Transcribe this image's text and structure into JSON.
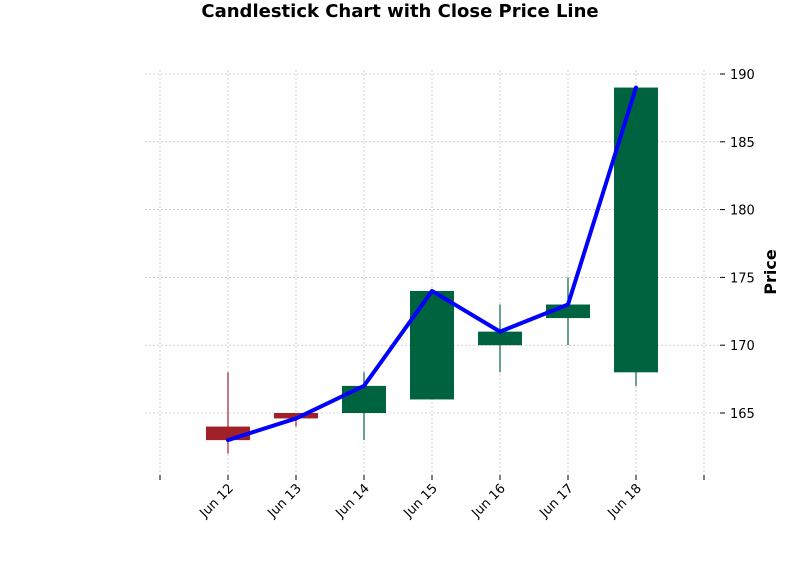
{
  "chart_data": {
    "type": "candlestick",
    "title": "Candlestick Chart with Close Price Line",
    "xlabel": "",
    "ylabel": "Price",
    "ylim": [
      160.5,
      191
    ],
    "yticks": [
      165,
      170,
      175,
      180,
      185,
      190
    ],
    "grid": true,
    "legend": "none",
    "categories": [
      "Jun 12",
      "Jun 13",
      "Jun 14",
      "Jun 15",
      "Jun 16",
      "Jun 17",
      "Jun 18"
    ],
    "ohlc": [
      {
        "date": "Jun 12",
        "open": 164.0,
        "high": 168.0,
        "low": 162.0,
        "close": 163.0
      },
      {
        "date": "Jun 13",
        "open": 165.0,
        "high": 165.0,
        "low": 164.0,
        "close": 164.6
      },
      {
        "date": "Jun 14",
        "open": 165.0,
        "high": 168.0,
        "low": 163.0,
        "close": 167.0
      },
      {
        "date": "Jun 15",
        "open": 166.0,
        "high": 174.0,
        "low": 166.0,
        "close": 174.0
      },
      {
        "date": "Jun 16",
        "open": 170.0,
        "high": 173.0,
        "low": 168.0,
        "close": 171.0
      },
      {
        "date": "Jun 17",
        "open": 172.0,
        "high": 175.0,
        "low": 170.0,
        "close": 173.0
      },
      {
        "date": "Jun 18",
        "open": 168.0,
        "high": 189.0,
        "low": 167.0,
        "close": 189.0
      }
    ],
    "close_line": [
      163.0,
      164.6,
      167.0,
      174.0,
      171.0,
      173.0,
      189.0
    ],
    "colors": {
      "up": "#006340",
      "down": "#a02128",
      "close_line": "#0000ff",
      "grid": "#b0b0b0"
    }
  }
}
